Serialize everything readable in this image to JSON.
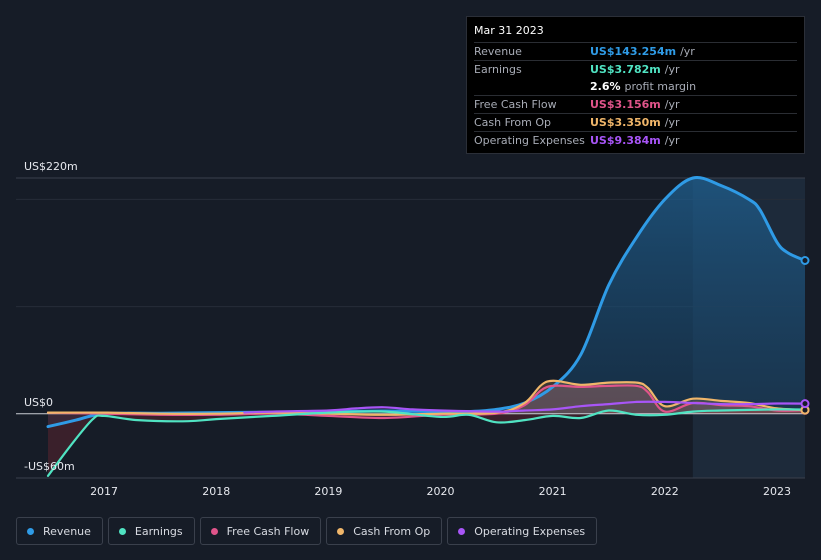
{
  "tooltip": {
    "date": "Mar 31 2023",
    "rows": [
      {
        "label": "Revenue",
        "value": "US$143.254m",
        "unit": "/yr",
        "color": "#2f9be6"
      },
      {
        "label": "Earnings",
        "value": "US$3.782m",
        "unit": "/yr",
        "color": "#50e3c2"
      },
      {
        "label": "",
        "value": "2.6%",
        "unit": "profit margin",
        "color": "#ffffff"
      },
      {
        "label": "Free Cash Flow",
        "value": "US$3.156m",
        "unit": "/yr",
        "color": "#e0548a"
      },
      {
        "label": "Cash From Op",
        "value": "US$3.350m",
        "unit": "/yr",
        "color": "#f0b66a"
      },
      {
        "label": "Operating Expenses",
        "value": "US$9.384m",
        "unit": "/yr",
        "color": "#a855f7"
      }
    ]
  },
  "legend": [
    {
      "label": "Revenue",
      "color": "#2f9be6"
    },
    {
      "label": "Earnings",
      "color": "#50e3c2"
    },
    {
      "label": "Free Cash Flow",
      "color": "#e0548a"
    },
    {
      "label": "Cash From Op",
      "color": "#f0b66a"
    },
    {
      "label": "Operating Expenses",
      "color": "#a855f7"
    }
  ],
  "chart_data": {
    "type": "area",
    "y_top_label": "US$220m",
    "y_zero_label": "US$0",
    "y_bottom_label": "-US$60m",
    "ylim": [
      -60,
      220
    ],
    "xlim": [
      2016.5,
      2023.25
    ],
    "xticks": [
      "2017",
      "2018",
      "2019",
      "2020",
      "2021",
      "2022",
      "2023"
    ],
    "xtick_values": [
      2017,
      2018,
      2019,
      2020,
      2021,
      2022,
      2023
    ],
    "highlight_from": 2022.25,
    "series": [
      {
        "name": "Revenue",
        "color": "#2f9be6",
        "fill": true,
        "x": [
          2016.5,
          2016.75,
          2017.0,
          2017.5,
          2018.0,
          2018.5,
          2019.0,
          2019.5,
          2020.0,
          2020.25,
          2020.5,
          2020.75,
          2021.0,
          2021.25,
          2021.5,
          2021.75,
          2022.0,
          2022.25,
          2022.5,
          2022.75,
          2022.85,
          2023.0,
          2023.1,
          2023.25
        ],
        "y": [
          -12,
          -6,
          0,
          0.5,
          1,
          1.5,
          2,
          2.5,
          2,
          2,
          4,
          10,
          25,
          55,
          120,
          165,
          200,
          220,
          213,
          200,
          190,
          160,
          150,
          143
        ]
      },
      {
        "name": "Earnings",
        "color": "#50e3c2",
        "fill": false,
        "x": [
          2016.5,
          2016.7,
          2016.9,
          2017.0,
          2017.3,
          2017.75,
          2018.0,
          2018.5,
          2019.0,
          2019.5,
          2020.0,
          2020.25,
          2020.5,
          2020.75,
          2021.0,
          2021.25,
          2021.5,
          2021.75,
          2022.0,
          2022.25,
          2022.5,
          2023.0,
          2023.25
        ],
        "y": [
          -58,
          -30,
          -5,
          -2,
          -6,
          -7,
          -5,
          -2,
          1,
          2,
          -3,
          -1,
          -8,
          -6,
          -2,
          -4,
          3,
          -1,
          -1,
          2,
          3,
          4,
          3.8
        ]
      },
      {
        "name": "Free Cash Flow",
        "color": "#e0548a",
        "fill": false,
        "x": [
          2016.5,
          2017.0,
          2017.5,
          2018.0,
          2018.5,
          2019.0,
          2019.5,
          2020.0,
          2020.5,
          2020.75,
          2020.95,
          2021.25,
          2021.5,
          2021.75,
          2021.85,
          2022.0,
          2022.25,
          2022.5,
          2022.75,
          2023.0,
          2023.25
        ],
        "y": [
          1,
          0,
          -1,
          -1,
          0,
          -2,
          -4,
          -1,
          0,
          8,
          25,
          25,
          26,
          26,
          20,
          2,
          10,
          8,
          7,
          3,
          3.2
        ]
      },
      {
        "name": "Cash From Op",
        "color": "#f0b66a",
        "fill": false,
        "x": [
          2016.5,
          2017.0,
          2017.5,
          2018.0,
          2018.5,
          2019.0,
          2019.5,
          2020.0,
          2020.5,
          2020.75,
          2020.95,
          2021.25,
          2021.5,
          2021.75,
          2021.85,
          2022.0,
          2022.25,
          2022.5,
          2022.75,
          2023.0,
          2023.25
        ],
        "y": [
          1,
          1,
          0,
          0,
          1,
          0,
          -1,
          0,
          1,
          10,
          30,
          27,
          29,
          29,
          24,
          7,
          14,
          12,
          10,
          5,
          3.4
        ]
      },
      {
        "name": "Operating Expenses",
        "color": "#a855f7",
        "fill": false,
        "x": [
          2018.25,
          2018.5,
          2019.0,
          2019.25,
          2019.5,
          2019.75,
          2020.0,
          2020.5,
          2020.75,
          2021.0,
          2021.25,
          2021.5,
          2021.75,
          2022.0,
          2022.25,
          2022.5,
          2022.75,
          2023.0,
          2023.25
        ],
        "y": [
          1,
          2,
          3,
          5,
          6,
          4,
          3,
          2,
          3,
          4,
          7,
          9,
          11,
          11,
          10,
          9,
          9,
          9.5,
          9.4
        ]
      }
    ]
  }
}
